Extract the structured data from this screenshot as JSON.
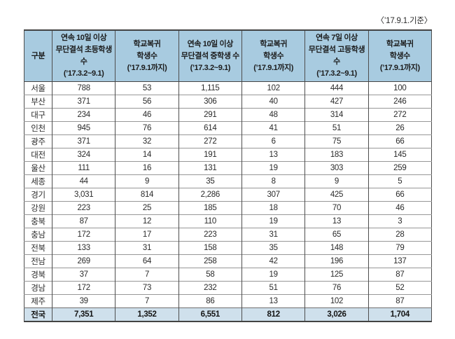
{
  "caption": "〈’17.9.1.기준〉",
  "table": {
    "headers": [
      "구분",
      "연속 10일 이상\n무단결석 초등학생 수\n(’17.3.2~9.1)",
      "학교복귀\n학생수\n(’17.9.1까지)",
      "연속 10일 이상\n무단결석 중학생 수\n(’17.3.2~9.1)",
      "학교복귀\n학생수\n(’17.9.1까지)",
      "연속 7일 이상\n무단결석 고등학생 수\n(’17.3.2~9.1)",
      "학교복귀\n학생수\n(’17.9.1까지)"
    ],
    "rows": [
      {
        "region": "서울",
        "values": [
          "788",
          "53",
          "1,115",
          "102",
          "444",
          "100"
        ]
      },
      {
        "region": "부산",
        "values": [
          "371",
          "56",
          "306",
          "40",
          "427",
          "246"
        ]
      },
      {
        "region": "대구",
        "values": [
          "234",
          "46",
          "291",
          "48",
          "314",
          "272"
        ]
      },
      {
        "region": "인천",
        "values": [
          "945",
          "76",
          "614",
          "41",
          "51",
          "26"
        ]
      },
      {
        "region": "광주",
        "values": [
          "371",
          "32",
          "272",
          "6",
          "75",
          "66"
        ]
      },
      {
        "region": "대전",
        "values": [
          "324",
          "14",
          "191",
          "13",
          "183",
          "145"
        ]
      },
      {
        "region": "울산",
        "values": [
          "111",
          "16",
          "131",
          "19",
          "303",
          "259"
        ]
      },
      {
        "region": "세종",
        "values": [
          "44",
          "9",
          "35",
          "8",
          "9",
          "5"
        ]
      },
      {
        "region": "경기",
        "values": [
          "3,031",
          "814",
          "2,286",
          "307",
          "425",
          "66"
        ]
      },
      {
        "region": "강원",
        "values": [
          "223",
          "25",
          "185",
          "18",
          "70",
          "46"
        ]
      },
      {
        "region": "충북",
        "values": [
          "87",
          "12",
          "110",
          "19",
          "13",
          "3"
        ]
      },
      {
        "region": "충남",
        "values": [
          "172",
          "17",
          "223",
          "31",
          "65",
          "28"
        ]
      },
      {
        "region": "전북",
        "values": [
          "133",
          "31",
          "158",
          "35",
          "148",
          "79"
        ]
      },
      {
        "region": "전남",
        "values": [
          "269",
          "64",
          "258",
          "42",
          "196",
          "137"
        ]
      },
      {
        "region": "경북",
        "values": [
          "37",
          "7",
          "58",
          "19",
          "125",
          "87"
        ]
      },
      {
        "region": "경남",
        "values": [
          "172",
          "73",
          "232",
          "51",
          "76",
          "52"
        ]
      },
      {
        "region": "제주",
        "values": [
          "39",
          "7",
          "86",
          "13",
          "102",
          "87"
        ]
      }
    ],
    "total": {
      "region": "전국",
      "values": [
        "7,351",
        "1,352",
        "6,551",
        "812",
        "3,026",
        "1,704"
      ]
    }
  },
  "colors": {
    "header_background": "#a8cbe0",
    "total_row_background": "#cfe0ec",
    "outer_border": "#434343",
    "inner_vertical_border": "#4e4e4e",
    "row_line": "#979797",
    "text": "#2b2b2b"
  }
}
